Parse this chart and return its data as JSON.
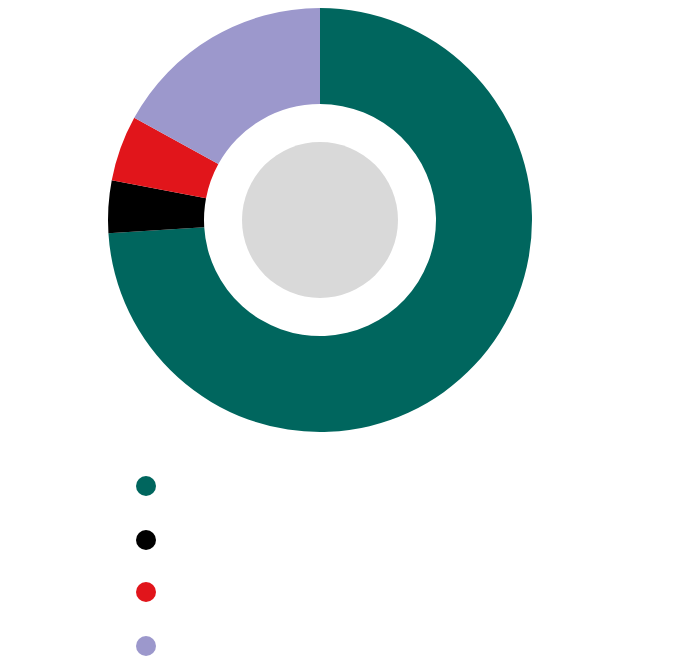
{
  "chart_data": {
    "type": "donut",
    "categories": [
      null,
      null,
      null,
      null
    ],
    "values": [
      74,
      4,
      5,
      17
    ],
    "colors": [
      "#00665e",
      "#000000",
      "#e1151b",
      "#9c98cc"
    ]
  }
}
